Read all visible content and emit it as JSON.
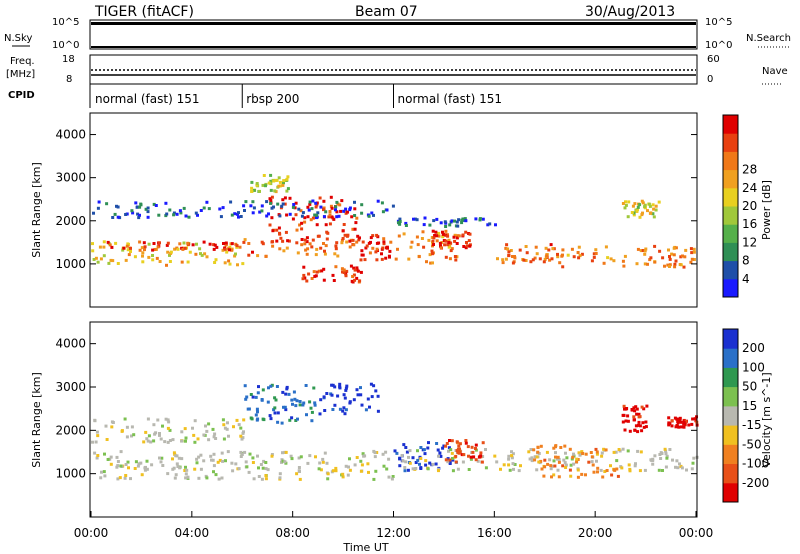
{
  "header": {
    "radar": "TIGER (fitACF)",
    "beam": "Beam 07",
    "date": "30/Aug/2013"
  },
  "top_strip": {
    "nsky_label": "N.Sky",
    "nsky_ticks": [
      "10^5",
      "10^0"
    ],
    "nsearch_label": "N.Search",
    "nsearch_ticks": [
      "10^5",
      "10^0"
    ],
    "freq_label": "Freq.",
    "freq_unit": "[MHz]",
    "freq_ticks": [
      "18",
      "8"
    ],
    "nave_label": "Nave",
    "nave_ticks": [
      "60",
      "0"
    ],
    "cpid_label": "CPID"
  },
  "cpid_segments": [
    {
      "label": "normal (fast) 151",
      "start_h": 0,
      "end_h": 6
    },
    {
      "label": "rbsp 200",
      "start_h": 6,
      "end_h": 12
    },
    {
      "label": "normal (fast) 151",
      "start_h": 12,
      "end_h": 24
    }
  ],
  "chart_data": [
    {
      "type": "heatmap",
      "panel": "power",
      "xlabel": "",
      "ylabel": "Slant Range [km]",
      "xlim": [
        0,
        24
      ],
      "ylim": [
        0,
        4500
      ],
      "yticks": [
        "1000",
        "2000",
        "3000",
        "4000"
      ],
      "colorbar": {
        "label": "Power [dB]",
        "ticks": [
          "4",
          "8",
          "12",
          "16",
          "20",
          "24",
          "28"
        ],
        "colors": [
          "#1a1aff",
          "#1f4fa8",
          "#2f8f55",
          "#55b04a",
          "#a0c83a",
          "#e8d020",
          "#f0a020",
          "#f07818",
          "#e84010",
          "#e00000"
        ]
      },
      "regions": [
        {
          "t0": 0.0,
          "t1": 6.0,
          "r0": 1000,
          "r1": 1550,
          "level": 0.6
        },
        {
          "t0": 0.0,
          "t1": 6.0,
          "r0": 1350,
          "r1": 1550,
          "level": 0.9
        },
        {
          "t0": 6.0,
          "t1": 10.5,
          "r0": 1200,
          "r1": 1600,
          "level": 0.8
        },
        {
          "t0": 7.0,
          "t1": 10.5,
          "r0": 1500,
          "r1": 2600,
          "level": 0.95
        },
        {
          "t0": 6.3,
          "t1": 7.8,
          "r0": 2700,
          "r1": 3100,
          "level": 0.5
        },
        {
          "t0": 8.3,
          "t1": 10.7,
          "r0": 600,
          "r1": 1000,
          "level": 0.95
        },
        {
          "t0": 10.5,
          "t1": 12.0,
          "r0": 1100,
          "r1": 1700,
          "level": 0.95
        },
        {
          "t0": 12.0,
          "t1": 14.5,
          "r0": 1050,
          "r1": 1800,
          "level": 0.75
        },
        {
          "t0": 13.5,
          "t1": 15.0,
          "r0": 1400,
          "r1": 1800,
          "level": 0.95
        },
        {
          "t0": 16.0,
          "t1": 18.5,
          "r0": 1050,
          "r1": 1500,
          "level": 0.8
        },
        {
          "t0": 18.0,
          "t1": 24.0,
          "r0": 950,
          "r1": 1450,
          "level": 0.75
        },
        {
          "t0": 21.0,
          "t1": 22.5,
          "r0": 2100,
          "r1": 2500,
          "level": 0.55
        },
        {
          "t0": 0.0,
          "t1": 12.0,
          "r0": 2100,
          "r1": 2500,
          "level": 0.1
        },
        {
          "t0": 12.0,
          "t1": 16.0,
          "r0": 1900,
          "r1": 2100,
          "level": 0.1
        }
      ]
    },
    {
      "type": "heatmap",
      "panel": "velocity",
      "xlabel": "Time UT",
      "ylabel": "Slant Range [km]",
      "xlim": [
        0,
        24
      ],
      "ylim": [
        0,
        4500
      ],
      "xticks": [
        "00:00",
        "04:00",
        "08:00",
        "12:00",
        "16:00",
        "20:00",
        "00:00"
      ],
      "yticks": [
        "1000",
        "2000",
        "3000",
        "4000"
      ],
      "colorbar": {
        "label": "Velocity [m s^-1]",
        "ticks": [
          "200",
          "100",
          "50",
          "15",
          "-15",
          "-50",
          "-100",
          "-200"
        ],
        "colors": [
          "#1a30d0",
          "#2a70c8",
          "#2f9850",
          "#7cc050",
          "#b8b8b0",
          "#f0c020",
          "#f08020",
          "#e85018",
          "#e00000"
        ]
      },
      "regions": [
        {
          "t0": 0.0,
          "t1": 12.0,
          "r0": 900,
          "r1": 1550,
          "level": 4
        },
        {
          "t0": 12.0,
          "t1": 14.5,
          "r0": 1100,
          "r1": 1800,
          "level": 0
        },
        {
          "t0": 12.0,
          "t1": 24.0,
          "r0": 1100,
          "r1": 1600,
          "level": 4
        },
        {
          "t0": 6.0,
          "t1": 9.0,
          "r0": 2200,
          "r1": 3100,
          "level": 1
        },
        {
          "t0": 9.0,
          "t1": 11.5,
          "r0": 2400,
          "r1": 3100,
          "level": 0
        },
        {
          "t0": 14.0,
          "t1": 15.5,
          "r0": 1300,
          "r1": 1800,
          "level": 7
        },
        {
          "t0": 17.5,
          "t1": 21.0,
          "r0": 950,
          "r1": 1700,
          "level": 6
        },
        {
          "t0": 21.0,
          "t1": 22.0,
          "r0": 2000,
          "r1": 2600,
          "level": 8
        },
        {
          "t0": 22.8,
          "t1": 24.0,
          "r0": 2100,
          "r1": 2350,
          "level": 8
        },
        {
          "t0": 0.0,
          "t1": 6.0,
          "r0": 1750,
          "r1": 2300,
          "level": 4
        }
      ]
    }
  ]
}
